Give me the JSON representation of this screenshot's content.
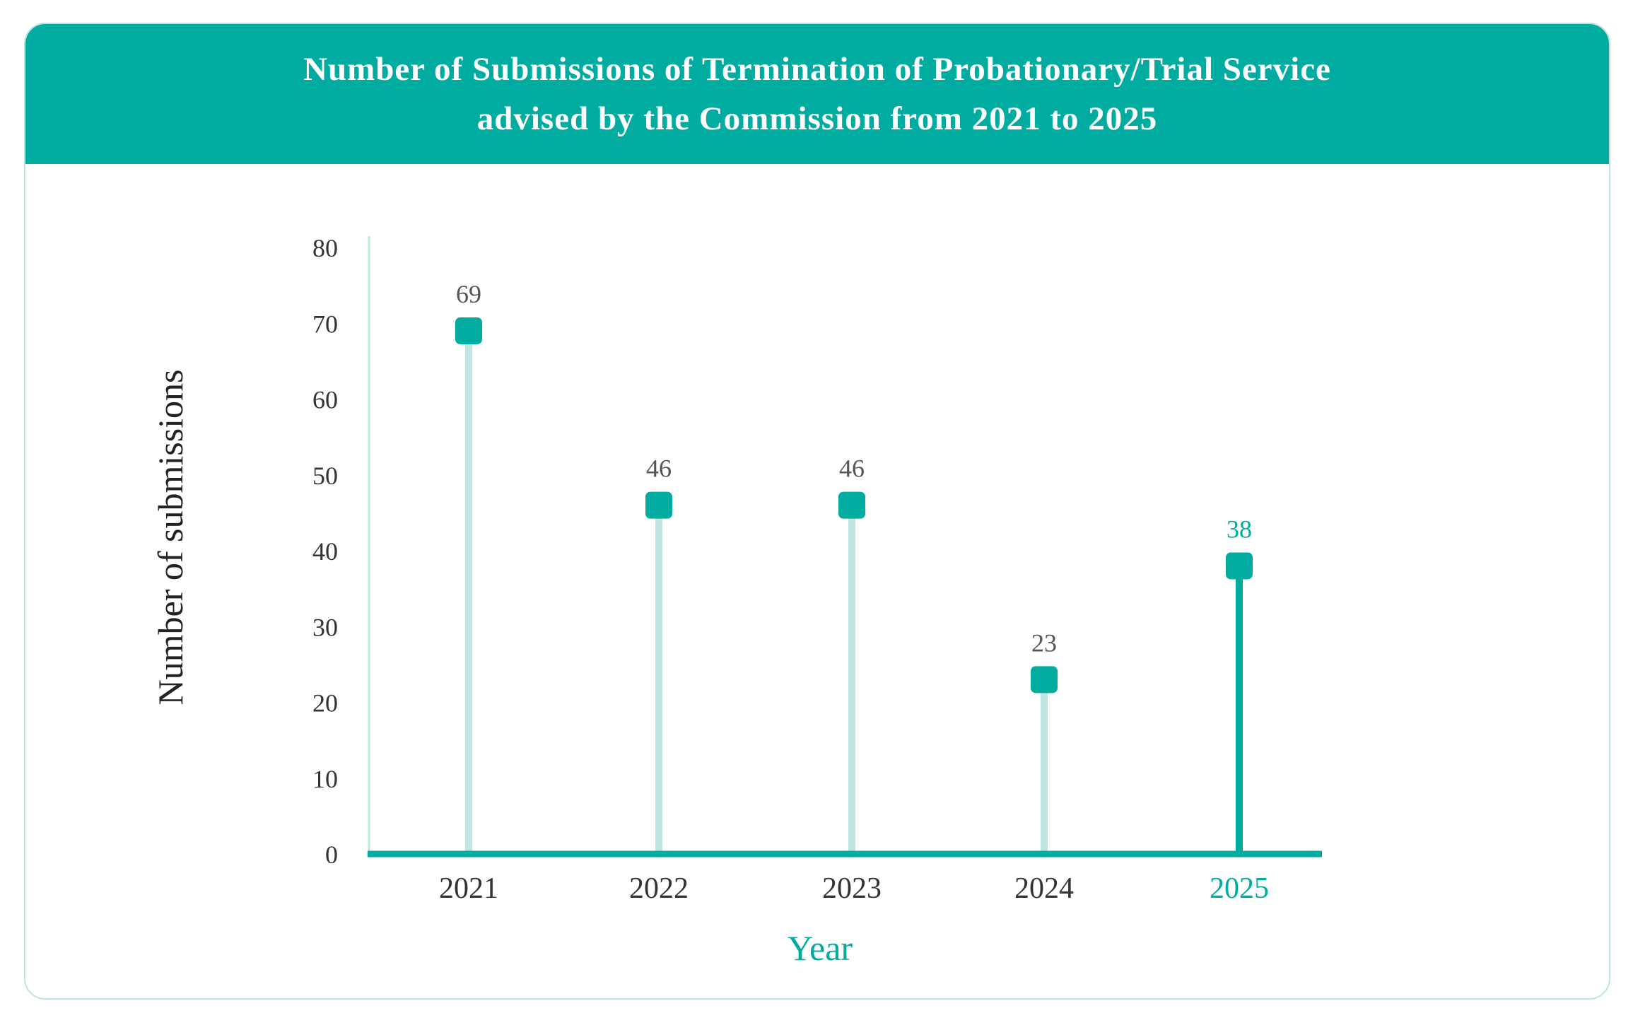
{
  "chart_data": {
    "type": "lollipop",
    "title": "Number of Submissions of Termination of Probationary/Trial Service advised by the Commission from 2021 to 2025",
    "xlabel": "Year",
    "ylabel": "Number of submissions",
    "categories": [
      "2021",
      "2022",
      "2023",
      "2024",
      "2025"
    ],
    "values": [
      69,
      46,
      46,
      23,
      38
    ],
    "highlight": "2025",
    "ylim": [
      0,
      80
    ],
    "yticks": [
      0,
      10,
      20,
      30,
      40,
      50,
      60,
      70,
      80
    ],
    "grid": false,
    "legend": "none",
    "colors": {
      "accent": "#00aca0",
      "stem": "#bfe6e1",
      "highlight_stem": "#00aca0",
      "marker": "#00aca0"
    }
  }
}
